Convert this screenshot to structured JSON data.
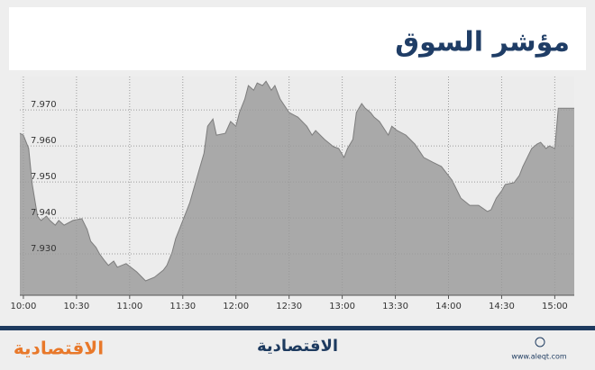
{
  "chart_data": {
    "type": "area",
    "title": "مؤشر السوق",
    "x": [
      598,
      600,
      603,
      605,
      608,
      610,
      613,
      615,
      618,
      620,
      623,
      628,
      633,
      636,
      638,
      641,
      643,
      646,
      648,
      651,
      653,
      658,
      664,
      669,
      674,
      679,
      681,
      684,
      686,
      689,
      694,
      699,
      702,
      704,
      707,
      709,
      714,
      717,
      720,
      722,
      725,
      727,
      730,
      732,
      735,
      737,
      740,
      742,
      745,
      750,
      755,
      760,
      763,
      765,
      770,
      775,
      778,
      781,
      783,
      786,
      788,
      791,
      793,
      796,
      798,
      801,
      806,
      808,
      811,
      816,
      821,
      826,
      831,
      836,
      842,
      847,
      852,
      857,
      862,
      864,
      867,
      870,
      872,
      877,
      880,
      882,
      887,
      890,
      892,
      895,
      897,
      900,
      902,
      911
    ],
    "series": [
      {
        "name": null,
        "color": "#a9a9a9",
        "line_color": "#7d7d7d",
        "values": [
          7.9635,
          7.963,
          7.9593,
          7.9493,
          7.9405,
          7.9393,
          7.9405,
          7.9393,
          7.938,
          7.9393,
          7.938,
          7.9393,
          7.9398,
          7.9368,
          7.9335,
          7.9318,
          7.93,
          7.928,
          7.9268,
          7.928,
          7.9263,
          7.9273,
          7.925,
          7.9225,
          7.9235,
          7.9255,
          7.9268,
          7.9305,
          7.9343,
          7.938,
          7.9443,
          7.953,
          7.958,
          7.9655,
          7.9675,
          7.963,
          7.9635,
          7.9668,
          7.9655,
          7.9693,
          7.973,
          7.9768,
          7.9755,
          7.9775,
          7.9768,
          7.978,
          7.9755,
          7.9768,
          7.973,
          7.9693,
          7.968,
          7.9655,
          7.963,
          7.9643,
          7.9618,
          7.9598,
          7.9593,
          7.9568,
          7.9593,
          7.9618,
          7.9693,
          7.9718,
          7.9705,
          7.9693,
          7.968,
          7.9668,
          7.963,
          7.9655,
          7.9643,
          7.963,
          7.9605,
          7.9568,
          7.9555,
          7.9543,
          7.9505,
          7.9455,
          7.9435,
          7.9435,
          7.9418,
          7.9423,
          7.9455,
          7.9475,
          7.9493,
          7.9498,
          7.9518,
          7.9543,
          7.9593,
          7.9605,
          7.961,
          7.9593,
          7.96,
          7.9593,
          7.9705,
          7.9705
        ]
      }
    ],
    "xlim": [
      598,
      911
    ],
    "xticks": [
      {
        "value": 600,
        "label": "10:00"
      },
      {
        "value": 630,
        "label": "10:30"
      },
      {
        "value": 660,
        "label": "11:00"
      },
      {
        "value": 690,
        "label": "11:30"
      },
      {
        "value": 720,
        "label": "12:00"
      },
      {
        "value": 750,
        "label": "12:30"
      },
      {
        "value": 780,
        "label": "13:00"
      },
      {
        "value": 810,
        "label": "13:30"
      },
      {
        "value": 840,
        "label": "14:00"
      },
      {
        "value": 870,
        "label": "14:30"
      },
      {
        "value": 900,
        "label": "15:00"
      }
    ],
    "ylim": [
      7.9185,
      7.9793
    ],
    "yticks": [
      {
        "value": 7.93,
        "label": "7.930"
      },
      {
        "value": 7.94,
        "label": "7.940"
      },
      {
        "value": 7.95,
        "label": "7.950"
      },
      {
        "value": 7.96,
        "label": "7.960"
      },
      {
        "value": 7.97,
        "label": "7.970"
      }
    ],
    "grid": true
  },
  "footer": {
    "logo_left": "الاقتصادية",
    "logo_center": "الاقتصادية",
    "website": "www.aleqt.com"
  }
}
